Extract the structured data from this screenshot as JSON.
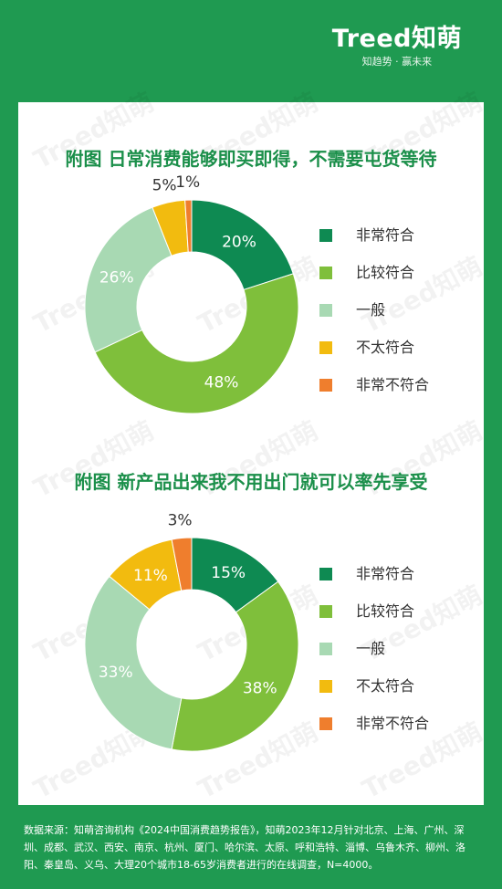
{
  "brand": {
    "logo": "Treed知萌",
    "slogan": "知趋势 · 赢未来"
  },
  "watermark_text": "Treed知萌",
  "colors": {
    "background": "#1f9a51",
    "title": "#1b8f4a",
    "非常符合": "#0e8a52",
    "比较符合": "#7fbf3b",
    "一般": "#a8d9b3",
    "不太符合": "#f2bb0f",
    "非常不符合": "#ef7e2d"
  },
  "chart_data": [
    {
      "type": "pie",
      "donut": true,
      "title": "附图 日常消费能够即买即得，不需要屯货等待",
      "categories": [
        "非常符合",
        "比较符合",
        "一般",
        "不太符合",
        "非常不符合"
      ],
      "values": [
        20,
        48,
        26,
        5,
        1
      ],
      "data_labels": [
        "20%",
        "48%",
        "26%",
        "5%",
        "1%"
      ],
      "legend": [
        "非常符合",
        "比较符合",
        "一般",
        "不太符合",
        "非常不符合"
      ],
      "legend_position": "right"
    },
    {
      "type": "pie",
      "donut": true,
      "title": "附图 新产品出来我不用出门就可以率先享受",
      "categories": [
        "非常符合",
        "比较符合",
        "一般",
        "不太符合",
        "非常不符合"
      ],
      "values": [
        15,
        38,
        33,
        11,
        3
      ],
      "data_labels": [
        "15%",
        "38%",
        "33%",
        "11%",
        "3%"
      ],
      "legend": [
        "非常符合",
        "比较符合",
        "一般",
        "不太符合",
        "非常不符合"
      ],
      "legend_position": "right"
    }
  ],
  "footer": {
    "source": "数据来源：知萌咨询机构《2024中国消费趋势报告》，知萌2023年12月针对北京、上海、广州、深圳、成都、武汉、西安、南京、杭州、厦门、哈尔滨、太原、呼和浩特、淄博、乌鲁木齐、柳州、洛阳、秦皇岛、义乌、大理20个城市18-65岁消费者进行的在线调查，N=4000。"
  }
}
